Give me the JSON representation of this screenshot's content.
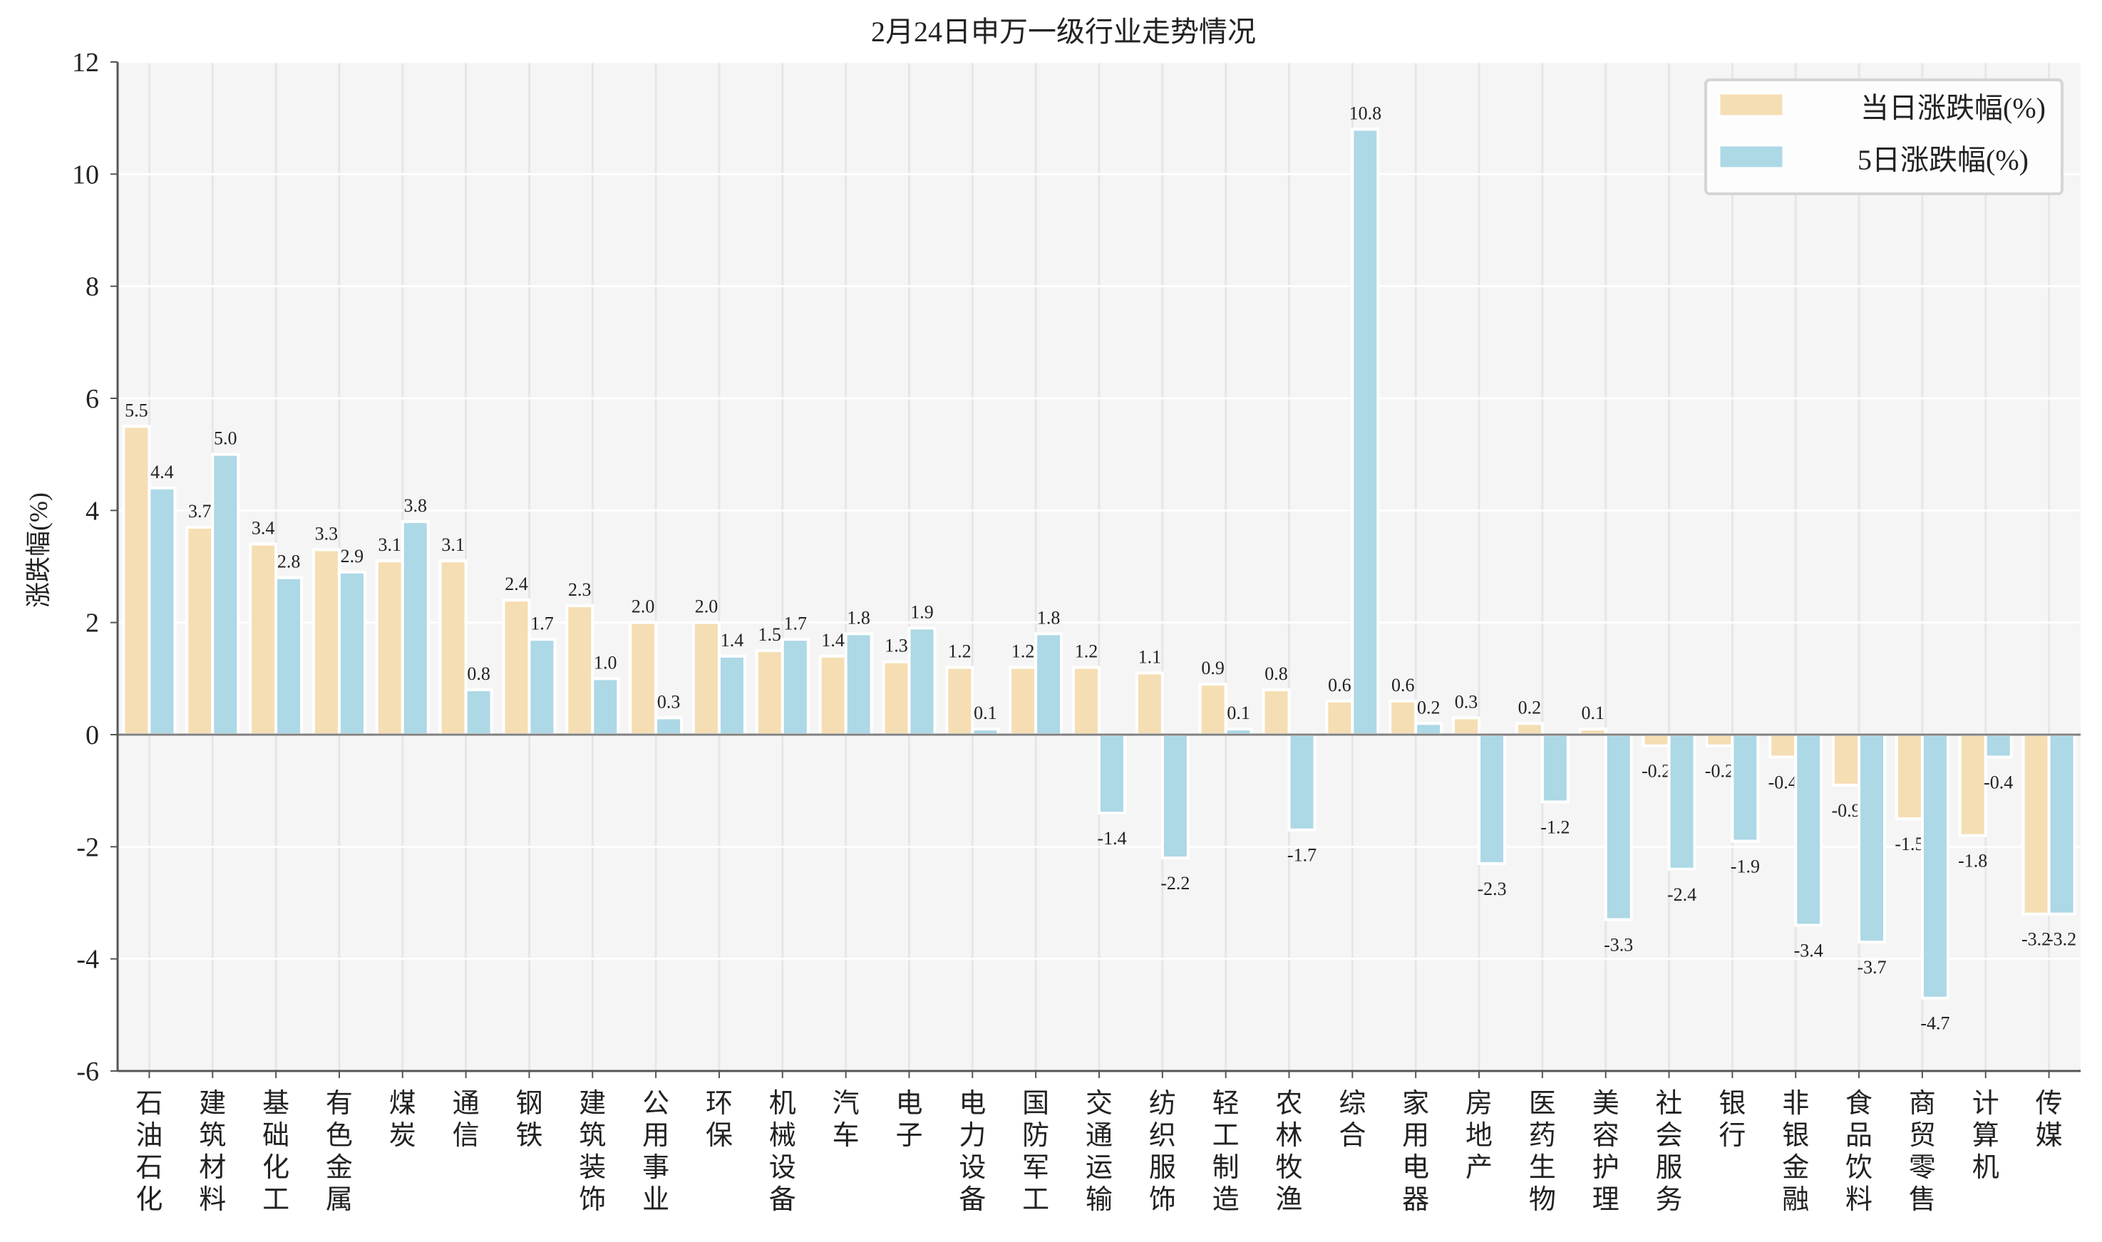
{
  "chart_data": {
    "type": "bar",
    "title": "2月24日申万一级行业走势情况",
    "xlabel": "",
    "ylabel": "涨跌幅(%)",
    "ylim": [
      -6,
      12
    ],
    "yticks": [
      -6,
      -4,
      -2,
      0,
      2,
      4,
      6,
      8,
      10,
      12
    ],
    "grid": true,
    "legend_position": "top-right",
    "categories": [
      "石油石化",
      "建筑材料",
      "基础化工",
      "有色金属",
      "煤炭",
      "通信",
      "钢铁",
      "建筑装饰",
      "公用事业",
      "环保",
      "机械设备",
      "汽车",
      "电子",
      "电力设备",
      "国防军工",
      "交通运输",
      "纺织服饰",
      "轻工制造",
      "农林牧渔",
      "综合",
      "家用电器",
      "房地产",
      "医药生物",
      "美容护理",
      "社会服务",
      "银行",
      "非银金融",
      "食品饮料",
      "商贸零售",
      "计算机",
      "传媒"
    ],
    "series": [
      {
        "name": "当日涨跌幅(%)",
        "color": "#F5DEB3",
        "values": [
          5.5,
          3.7,
          3.4,
          3.3,
          3.1,
          3.1,
          2.4,
          2.3,
          2.0,
          2.0,
          1.5,
          1.4,
          1.3,
          1.2,
          1.2,
          1.2,
          1.1,
          0.9,
          0.8,
          0.6,
          0.6,
          0.3,
          0.2,
          0.1,
          -0.2,
          -0.2,
          -0.4,
          -0.9,
          -1.5,
          -1.8,
          -3.2
        ]
      },
      {
        "name": "5日涨跌幅(%)",
        "color": "#ADD8E6",
        "values": [
          4.4,
          5.0,
          2.8,
          2.9,
          3.8,
          0.8,
          1.7,
          1.0,
          0.3,
          1.4,
          1.7,
          1.8,
          1.9,
          0.1,
          1.8,
          -1.4,
          -2.2,
          0.1,
          -1.7,
          10.8,
          0.2,
          -2.3,
          -1.2,
          -3.3,
          -2.4,
          -1.9,
          -3.4,
          -3.7,
          -4.7,
          -0.4,
          -3.2
        ]
      }
    ]
  }
}
